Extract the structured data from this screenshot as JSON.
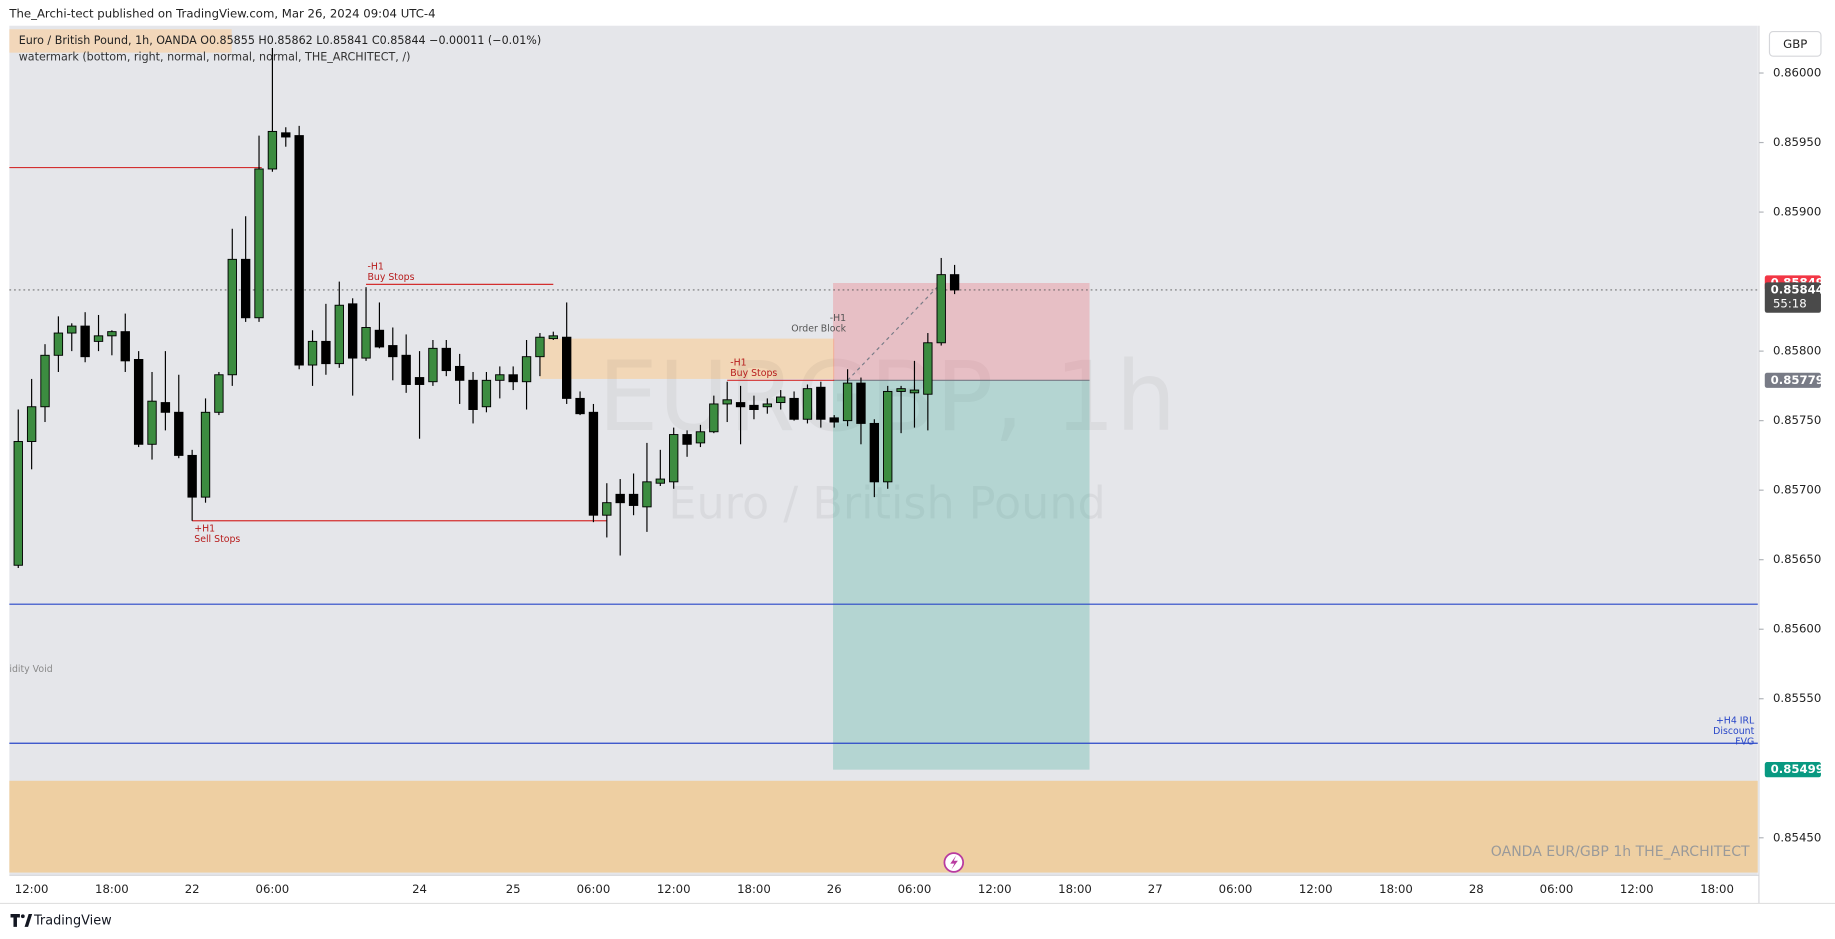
{
  "header": {
    "publisher": "The_Archi-tect published on TradingView.com, Mar 26, 2024 09:04 UTC-4",
    "legend": "Euro / British Pound, 1h, OANDA  O0.85855  H0.85862  L0.85841  C0.85844  −0.00011 (−0.01%)",
    "indicator": "watermark (bottom, right, normal, normal, normal, THE_ARCHITECT, /)",
    "currency": "GBP"
  },
  "chart_data": {
    "type": "candlestick",
    "categories": [
      null,
      "12:00",
      null,
      null,
      null,
      null,
      null,
      "18:00",
      null,
      null,
      null,
      null,
      null,
      "22",
      null,
      null,
      null,
      null,
      null,
      "06:00",
      null,
      null,
      null,
      null,
      null,
      null,
      null,
      null,
      null,
      null,
      "24",
      null,
      null,
      null,
      null,
      null,
      null,
      "25",
      null,
      null,
      null,
      null,
      null,
      "06:00",
      null,
      null,
      null,
      null,
      null,
      "12:00",
      null,
      null,
      null,
      null,
      null,
      "18:00",
      null,
      null,
      null,
      null,
      null,
      "26",
      null,
      null,
      null,
      null,
      null,
      "06:00",
      null,
      null,
      null,
      null,
      null,
      "12:00",
      null,
      null,
      null,
      null,
      null,
      "18:00",
      null,
      null,
      null,
      null,
      null,
      "27",
      null,
      null,
      null,
      null,
      null,
      "06:00",
      null,
      null,
      null,
      null,
      null,
      "12:00",
      null,
      null,
      null,
      null,
      null,
      "18:00",
      null,
      null,
      null,
      null,
      null,
      "28",
      null,
      null,
      null,
      null,
      null,
      "06:00",
      null,
      null,
      null,
      null,
      null,
      "12:00",
      null,
      null,
      null,
      null,
      null,
      "18:00",
      null,
      null
    ],
    "open": [
      0.85646,
      0.85735,
      0.8576,
      0.85797,
      0.85813,
      0.85818,
      0.85807,
      0.85811,
      0.85814,
      0.85794,
      0.85733,
      0.85763,
      0.85756,
      0.85725,
      0.85695,
      0.85756,
      0.85783,
      0.85866,
      0.85824,
      0.85931,
      0.85957,
      0.85955,
      0.8579,
      0.85807,
      0.85791,
      0.85834,
      0.85795,
      0.85815,
      0.85804,
      0.85797,
      0.85781,
      0.85778,
      0.85802,
      0.85789,
      0.85779,
      0.8576,
      0.85779,
      0.85783,
      0.85778,
      0.85796,
      0.85809,
      0.8581,
      0.85766,
      0.85756,
      0.85682,
      0.85697,
      0.85697,
      0.85688,
      0.85705,
      0.85706,
      0.8574,
      0.85734,
      0.85742,
      0.85762,
      0.85763,
      0.85761,
      0.8576,
      0.85763,
      0.85766,
      0.85751,
      0.85774,
      0.85752,
      0.8575,
      0.85777,
      0.85748,
      0.85706,
      0.85771,
      0.8577,
      0.85769,
      0.85806,
      0.85855,
      null,
      null,
      null,
      null,
      null,
      null,
      null,
      null,
      null,
      null,
      null,
      null,
      null,
      null,
      null,
      null,
      null,
      null,
      null,
      null,
      null,
      null,
      null,
      null,
      null,
      null,
      null,
      null,
      null,
      null,
      null,
      null,
      null,
      null,
      null,
      null,
      null,
      null,
      null,
      null,
      null,
      null,
      null,
      null,
      null,
      null,
      null,
      null,
      null,
      null,
      null,
      null,
      null,
      null,
      null,
      null,
      null,
      null,
      null
    ],
    "high": [
      0.85758,
      0.8578,
      0.85805,
      0.85825,
      0.8582,
      0.85828,
      0.85826,
      0.85815,
      0.85827,
      0.858,
      0.85785,
      0.858,
      0.85783,
      0.85729,
      0.85766,
      0.85785,
      0.85888,
      0.85897,
      0.85955,
      0.86018,
      0.85961,
      0.85962,
      0.85815,
      0.85834,
      0.8585,
      0.85838,
      0.85846,
      0.85835,
      0.85817,
      0.85812,
      0.858,
      0.85808,
      0.85808,
      0.85798,
      0.85785,
      0.85785,
      0.85789,
      0.85789,
      0.85808,
      0.85813,
      0.85814,
      0.85835,
      0.85771,
      0.85762,
      0.85705,
      0.85708,
      0.85712,
      0.85734,
      0.85729,
      0.85745,
      0.85743,
      0.85747,
      0.85768,
      0.85778,
      0.85775,
      0.85768,
      0.85766,
      0.85772,
      0.85771,
      0.85776,
      0.85778,
      0.85754,
      0.85787,
      0.85781,
      0.85751,
      0.85775,
      0.85775,
      0.85793,
      0.85813,
      0.85867,
      0.85862,
      null,
      null,
      null,
      null,
      null,
      null,
      null,
      null,
      null,
      null,
      null,
      null,
      null,
      null,
      null,
      null,
      null,
      null,
      null,
      null,
      null,
      null,
      null,
      null,
      null,
      null,
      null,
      null,
      null,
      null,
      null,
      null,
      null,
      null,
      null,
      null,
      null,
      null,
      null,
      null,
      null,
      null,
      null,
      null,
      null,
      null,
      null,
      null,
      null,
      null,
      null,
      null,
      null,
      null,
      null,
      null,
      null,
      null,
      null
    ],
    "low": [
      0.85644,
      0.85715,
      0.85749,
      0.85785,
      0.858,
      0.85792,
      0.858,
      0.85797,
      0.85785,
      0.85731,
      0.85722,
      0.85743,
      0.85723,
      0.85678,
      0.85691,
      0.85754,
      0.85775,
      0.85821,
      0.85821,
      0.85929,
      0.85947,
      0.85787,
      0.85775,
      0.85783,
      0.85788,
      0.85768,
      0.85793,
      0.85802,
      0.85779,
      0.8577,
      0.85737,
      0.85775,
      0.85782,
      0.85762,
      0.85748,
      0.85756,
      0.85766,
      0.85772,
      0.85758,
      0.85782,
      0.85808,
      0.85762,
      0.85754,
      0.85677,
      0.85666,
      0.85653,
      0.85682,
      0.8567,
      0.85703,
      0.85701,
      0.85724,
      0.85731,
      0.85741,
      0.85749,
      0.85733,
      0.85751,
      0.85755,
      0.85758,
      0.8575,
      0.85748,
      0.85745,
      0.85745,
      0.85746,
      0.85733,
      0.85695,
      0.85701,
      0.85741,
      0.85745,
      0.85743,
      0.85804,
      0.85841,
      null,
      null,
      null,
      null,
      null,
      null,
      null,
      null,
      null,
      null,
      null,
      null,
      null,
      null,
      null,
      null,
      null,
      null,
      null,
      null,
      null,
      null,
      null,
      null,
      null,
      null,
      null,
      null,
      null,
      null,
      null,
      null,
      null,
      null,
      null,
      null,
      null,
      null,
      null,
      null,
      null,
      null,
      null,
      null,
      null,
      null,
      null,
      null,
      null,
      null,
      null,
      null,
      null,
      null,
      null,
      null,
      null,
      null,
      null
    ],
    "close": [
      0.85735,
      0.8576,
      0.85797,
      0.85813,
      0.85818,
      0.85796,
      0.85811,
      0.85814,
      0.85793,
      0.85733,
      0.85764,
      0.85756,
      0.85725,
      0.85695,
      0.85756,
      0.85783,
      0.85866,
      0.85824,
      0.85931,
      0.85958,
      0.85954,
      0.8579,
      0.85807,
      0.85791,
      0.85833,
      0.85795,
      0.85817,
      0.85803,
      0.85796,
      0.85776,
      0.85776,
      0.85802,
      0.85786,
      0.85779,
      0.85758,
      0.85779,
      0.85783,
      0.85778,
      0.85796,
      0.8581,
      0.85811,
      0.85766,
      0.85755,
      0.85682,
      0.85691,
      0.85691,
      0.85689,
      0.85706,
      0.85708,
      0.8574,
      0.85733,
      0.85742,
      0.85762,
      0.85765,
      0.8576,
      0.85758,
      0.85762,
      0.85767,
      0.85751,
      0.85773,
      0.85751,
      0.85749,
      0.85777,
      0.85748,
      0.85706,
      0.85771,
      0.85773,
      0.85772,
      0.85806,
      0.85855,
      0.85844,
      null,
      null,
      null,
      null,
      null,
      null,
      null,
      null,
      null,
      null,
      null,
      null,
      null,
      null,
      null,
      null,
      null,
      null,
      null,
      null,
      null,
      null,
      null,
      null,
      null,
      null,
      null,
      null,
      null,
      null,
      null,
      null,
      null,
      null,
      null,
      null,
      null,
      null,
      null,
      null,
      null,
      null,
      null,
      null,
      null,
      null,
      null,
      null,
      null,
      null,
      null,
      null,
      null,
      null,
      null,
      null,
      null,
      null,
      null
    ],
    "up_color": "#3c8c40",
    "down_color": "#000000",
    "ylim": [
      0.85423,
      0.86034
    ],
    "yticks": [
      {
        "value": 0.8545,
        "label": "0.85450"
      },
      {
        "value": 0.8555,
        "label": "0.85550"
      },
      {
        "value": 0.856,
        "label": "0.85600"
      },
      {
        "value": 0.8565,
        "label": "0.85650"
      },
      {
        "value": 0.857,
        "label": "0.85700"
      },
      {
        "value": 0.8575,
        "label": "0.85750"
      },
      {
        "value": 0.858,
        "label": "0.85800"
      },
      {
        "value": 0.859,
        "label": "0.85900"
      },
      {
        "value": 0.8595,
        "label": "0.85950"
      },
      {
        "value": 0.86,
        "label": "0.86000"
      }
    ],
    "last_price": 0.85844,
    "countdown": "55:18",
    "position": {
      "stop": 0.85849,
      "entry": 0.85779,
      "target": 0.85499
    },
    "levels": [
      {
        "value": 0.85932,
        "color": "#d32f2f"
      },
      {
        "value": 0.85848,
        "color": "#d32f2f"
      },
      {
        "value": 0.85678,
        "color": "#d32f2f"
      },
      {
        "value": 0.85779,
        "color": "#d32f2f"
      },
      {
        "value": 0.85618,
        "color": "#2846c8"
      },
      {
        "value": 0.85518,
        "color": "#2846c8"
      }
    ],
    "zones": [
      {
        "range": [
          0.8578,
          0.85809
        ],
        "color": "#f5d3ae"
      },
      {
        "range": [
          0.85425,
          0.85491
        ],
        "color": "#eecfa2"
      }
    ],
    "annotations": [
      {
        "lines": [
          "-H1",
          "Buy Stops"
        ],
        "color": "#b71c1c"
      },
      {
        "lines": [
          "+H1",
          "Sell Stops"
        ],
        "color": "#b71c1c"
      },
      {
        "lines": [
          "-H1",
          "Buy Stops"
        ],
        "color": "#b71c1c"
      },
      {
        "lines": [
          "-H1",
          "Order Block"
        ],
        "color": "#555555"
      },
      {
        "lines": [
          "idity Void"
        ],
        "color": "#8a8a8a"
      },
      {
        "lines": [
          "+H4 IRL",
          "Discount",
          "FVG"
        ],
        "color": "#2846c8"
      }
    ],
    "watermark": {
      "symbol": "EURGBP, 1h",
      "description": "Euro / British Pound",
      "footer": "OANDA  EUR/GBP 1h  THE_ARCHITECT"
    }
  },
  "footer": {
    "brand": "TradingView"
  }
}
